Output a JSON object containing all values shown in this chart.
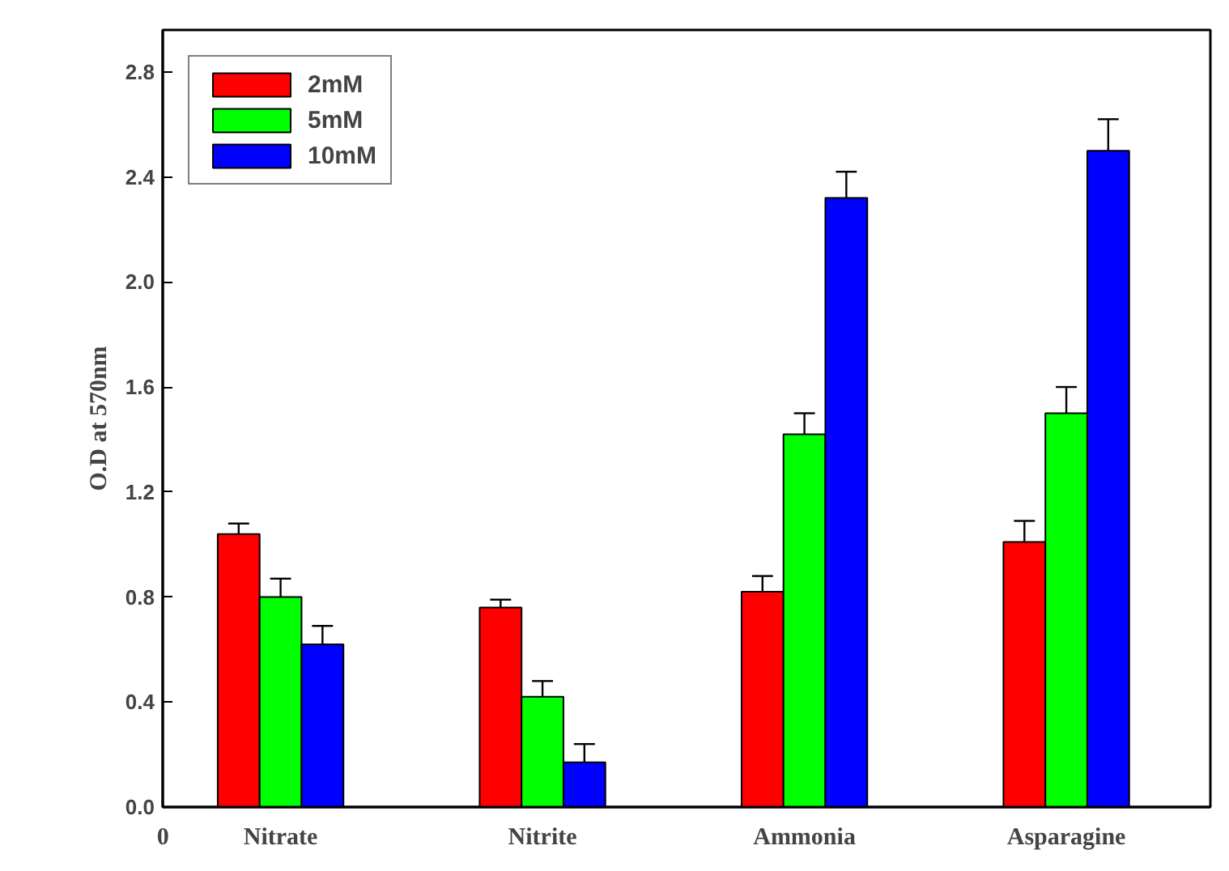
{
  "chart_data": {
    "type": "bar",
    "ylabel": "O.D at 570nm",
    "categories": [
      "Nitrate",
      "Nitrite",
      "Ammonia",
      "Asparagine"
    ],
    "series": [
      {
        "name": "2mM",
        "color": "#ff0000",
        "values": [
          1.04,
          0.76,
          0.82,
          1.01
        ],
        "errors": [
          0.04,
          0.03,
          0.06,
          0.08
        ]
      },
      {
        "name": "5mM",
        "color": "#00ff00",
        "values": [
          0.8,
          0.42,
          1.42,
          1.5
        ],
        "errors": [
          0.07,
          0.06,
          0.08,
          0.1
        ]
      },
      {
        "name": "10mM",
        "color": "#0000ff",
        "values": [
          0.62,
          0.17,
          2.32,
          2.5
        ],
        "errors": [
          0.07,
          0.07,
          0.1,
          0.12
        ]
      }
    ],
    "ylim": [
      0,
      2.96
    ],
    "yticks": [
      {
        "value": 0,
        "label": "0.0"
      },
      0.4,
      0.8,
      1.2,
      1.6,
      {
        "value": 2,
        "label": "2.0"
      },
      2.4,
      2.8
    ],
    "annotations": [
      "0"
    ],
    "legend": "top left",
    "grid": false
  }
}
